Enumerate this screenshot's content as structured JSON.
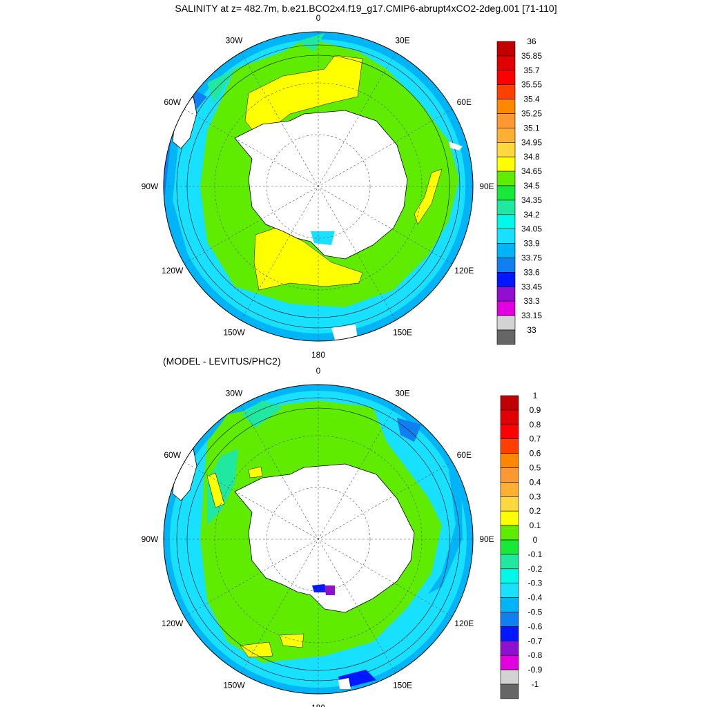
{
  "main_title": "SALINITY at z= 482.7m, b.e21.BCO2x4.f19_g17.CMIP6-abrupt4xCO2-2deg.001 [71-110]",
  "diff_title": "(MODEL - LEVITUS/PHC2)",
  "lon_labels": [
    "0",
    "30E",
    "60E",
    "90E",
    "120E",
    "150E",
    "180",
    "150W",
    "120W",
    "90W",
    "60W",
    "30W"
  ],
  "colors": {
    "land": "#ffffff",
    "coast": "#000000",
    "grid": "#555555",
    "palette": [
      "#666666",
      "#d3d3d3",
      "#e000e0",
      "#9010d0",
      "#0018ff",
      "#1080f0",
      "#00b4f8",
      "#18e0ff",
      "#00f8e8",
      "#20e8a0",
      "#18e838",
      "#60ec00",
      "#ffff00",
      "#ffd840",
      "#ffb030",
      "#ff9830",
      "#ff8800",
      "#ff4000",
      "#ff0000",
      "#e00000",
      "#c00000"
    ]
  },
  "panels": [
    {
      "name": "salinity",
      "colorbar_labels": [
        "36",
        "35.85",
        "35.7",
        "35.55",
        "35.4",
        "35.25",
        "35.1",
        "34.95",
        "34.8",
        "34.65",
        "34.5",
        "34.35",
        "34.2",
        "34.05",
        "33.9",
        "33.75",
        "33.6",
        "33.45",
        "33.3",
        "33.15",
        "33"
      ]
    },
    {
      "name": "difference",
      "colorbar_labels": [
        "1",
        "0.9",
        "0.8",
        "0.7",
        "0.6",
        "0.5",
        "0.4",
        "0.3",
        "0.2",
        "0.1",
        "0",
        "-0.1",
        "-0.2",
        "-0.3",
        "-0.4",
        "-0.5",
        "-0.6",
        "-0.7",
        "-0.8",
        "-0.9",
        "-1"
      ]
    }
  ]
}
